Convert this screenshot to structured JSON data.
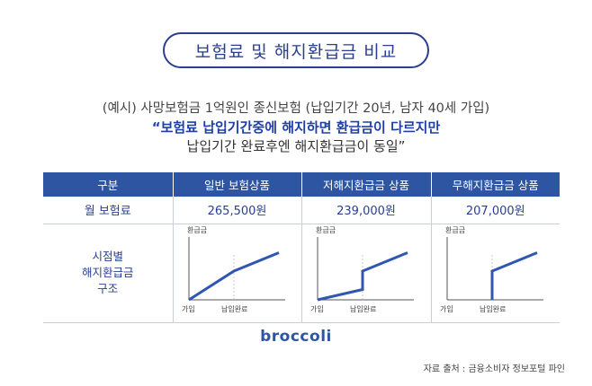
{
  "title": "보험료 및 해지환급금 비교",
  "intro": {
    "line1": "(예시) 사망보험금 1억원인 종신보험 (납입기간 20년, 남자 40세 가입)",
    "line2": "“보험료 납입기간중에 해지하면 환급금이 다르지만",
    "line3": "납입기간 완료후엔 해지환급금이 동일”"
  },
  "table": {
    "headers": [
      "구분",
      "일반 보험상품",
      "저해지환급금 상품",
      "무해지환급금 상품"
    ],
    "premium_row": {
      "label": "월 보험료",
      "values": [
        "265,500원",
        "239,000원",
        "207,000원"
      ]
    },
    "structure_row": {
      "label_lines": [
        "시점별",
        "해지환급금",
        "구조"
      ]
    }
  },
  "chart_data": [
    {
      "type": "line",
      "product": "일반 보험상품",
      "ylabel": "환급금",
      "x_tick_labels": [
        "가입",
        "납입완료"
      ],
      "x": [
        0,
        0.5,
        1
      ],
      "y": [
        0,
        0.5,
        0.82
      ]
    },
    {
      "type": "line",
      "product": "저해지환급금 상품",
      "ylabel": "환급금",
      "x_tick_labels": [
        "가입",
        "납입완료"
      ],
      "x": [
        0,
        0.5,
        0.5,
        1
      ],
      "y": [
        0,
        0.18,
        0.5,
        0.82
      ]
    },
    {
      "type": "line",
      "product": "무해지환급금 상품",
      "ylabel": "환급금",
      "x_tick_labels": [
        "가입",
        "납입완료"
      ],
      "x": [
        0.5,
        0.5,
        1
      ],
      "y": [
        0,
        0.5,
        0.82
      ]
    }
  ],
  "colors": {
    "primary": "#2e55a2",
    "title": "#2a3f8f",
    "line": "#2f56b0",
    "axis": "#555555",
    "grid": "#bbbbbb"
  },
  "brand": "broccoli",
  "source": "자료 출처 : 금융소비자 정보포털 파인"
}
